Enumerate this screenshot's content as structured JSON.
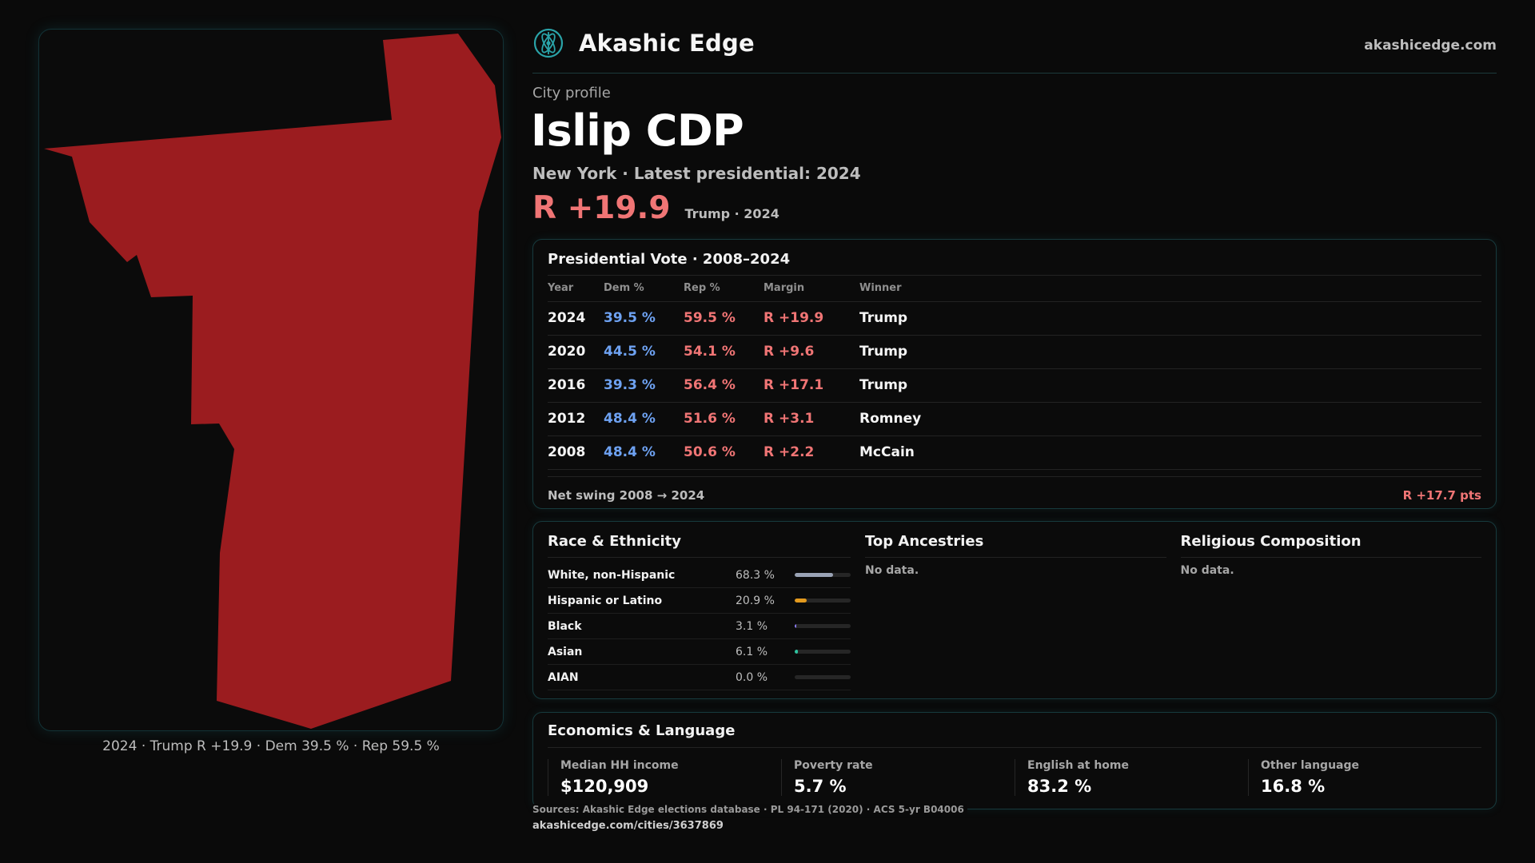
{
  "map": {
    "caption": "2024 · Trump R +19.9 · Dem 39.5 % · Rep 59.5 %",
    "fill_color": "#9b1c1f"
  },
  "header": {
    "brand": "Akashic Edge",
    "url": "akashicedge.com",
    "logo_icon": "atom-logo-icon"
  },
  "profile": {
    "kicker": "City profile",
    "title": "Islip CDP",
    "subtitle": "New York  · Latest presidential: 2024",
    "margin": "R +19.9",
    "margin_note": "Trump · 2024"
  },
  "vote": {
    "title": "Presidential Vote · 2008–2024",
    "headers": [
      "Year",
      "Dem %",
      "Rep %",
      "Margin",
      "Winner"
    ],
    "rows": [
      {
        "year": "2024",
        "dem": "39.5 %",
        "rep": "59.5 %",
        "margin": "R +19.9",
        "winner": "Trump"
      },
      {
        "year": "2020",
        "dem": "44.5 %",
        "rep": "54.1 %",
        "margin": "R +9.6",
        "winner": "Trump"
      },
      {
        "year": "2016",
        "dem": "39.3 %",
        "rep": "56.4 %",
        "margin": "R +17.1",
        "winner": "Trump"
      },
      {
        "year": "2012",
        "dem": "48.4 %",
        "rep": "51.6 %",
        "margin": "R +3.1",
        "winner": "Romney"
      },
      {
        "year": "2008",
        "dem": "48.4 %",
        "rep": "50.6 %",
        "margin": "R +2.2",
        "winner": "McCain"
      }
    ],
    "net_swing_label": "Net swing 2008 → 2024",
    "net_swing_value": "R +17.7 pts"
  },
  "race": {
    "title": "Race & Ethnicity",
    "rows": [
      {
        "label": "White, non-Hispanic",
        "value": "68.3 %",
        "share": 0.683,
        "color": "#9aa3b5"
      },
      {
        "label": "Hispanic or Latino",
        "value": "20.9 %",
        "share": 0.209,
        "color": "#e39a1e"
      },
      {
        "label": "Black",
        "value": "3.1 %",
        "share": 0.031,
        "color": "#8b7cf0"
      },
      {
        "label": "Asian",
        "value": "6.1 %",
        "share": 0.061,
        "color": "#2ec4a0"
      },
      {
        "label": "AIAN",
        "value": "0.0 %",
        "share": 0.0,
        "color": "#c070d0"
      }
    ]
  },
  "ancestries": {
    "title": "Top Ancestries",
    "empty": "No data."
  },
  "religion": {
    "title": "Religious Composition",
    "empty": "No data."
  },
  "economics": {
    "title": "Economics & Language",
    "cells": [
      {
        "label": "Median HH income",
        "value": "$120,909"
      },
      {
        "label": "Poverty rate",
        "value": "5.7 %"
      },
      {
        "label": "English at home",
        "value": "83.2 %"
      },
      {
        "label": "Other language",
        "value": "16.8 %"
      }
    ]
  },
  "footer": {
    "sources": "Sources: Akashic Edge elections database · PL 94-171 (2020) · ACS 5-yr B04006",
    "url": "akashicedge.com/cities/3637869"
  }
}
